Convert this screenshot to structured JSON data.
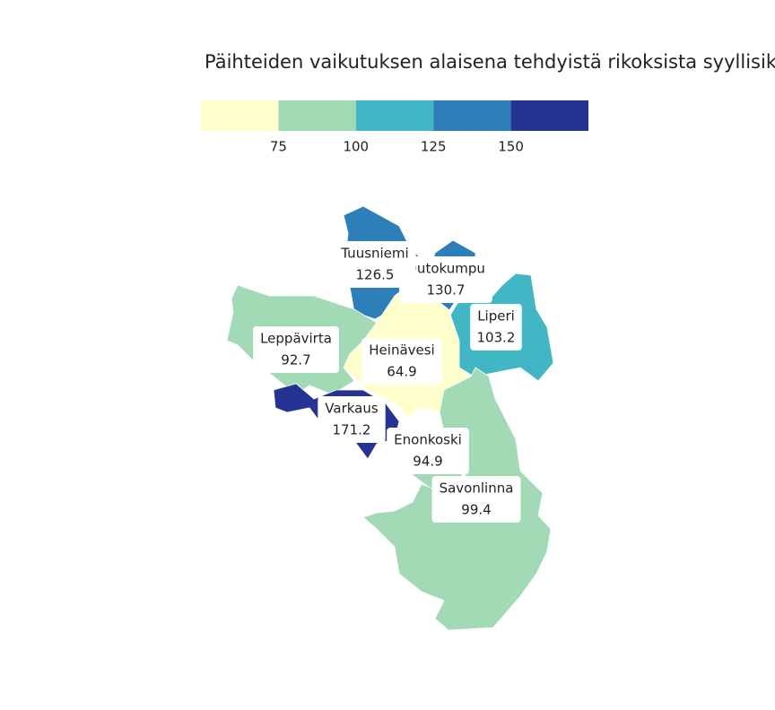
{
  "chart_data": {
    "type": "choropleth",
    "title": "Päihteiden vaikutuksen alaisena tehdyistä rikoksista syyllisiks",
    "legend": {
      "lim": [
        50,
        175
      ],
      "ticks": [
        75,
        100,
        125,
        150
      ],
      "colors": [
        "#ffffcc",
        "#a1dab4",
        "#41b6c4",
        "#2c7fb8",
        "#253494"
      ]
    },
    "regions": [
      {
        "name": "Outokumpu",
        "value": 130.7
      },
      {
        "name": "Tuusniemi",
        "value": 126.5
      },
      {
        "name": "Liperi",
        "value": 103.2
      },
      {
        "name": "Leppävirta",
        "value": 92.7
      },
      {
        "name": "Heinävesi",
        "value": 64.9
      },
      {
        "name": "Varkaus",
        "value": 171.2
      },
      {
        "name": "Enonkoski",
        "value": 94.9
      },
      {
        "name": "Savonlinna",
        "value": 99.4
      }
    ]
  }
}
